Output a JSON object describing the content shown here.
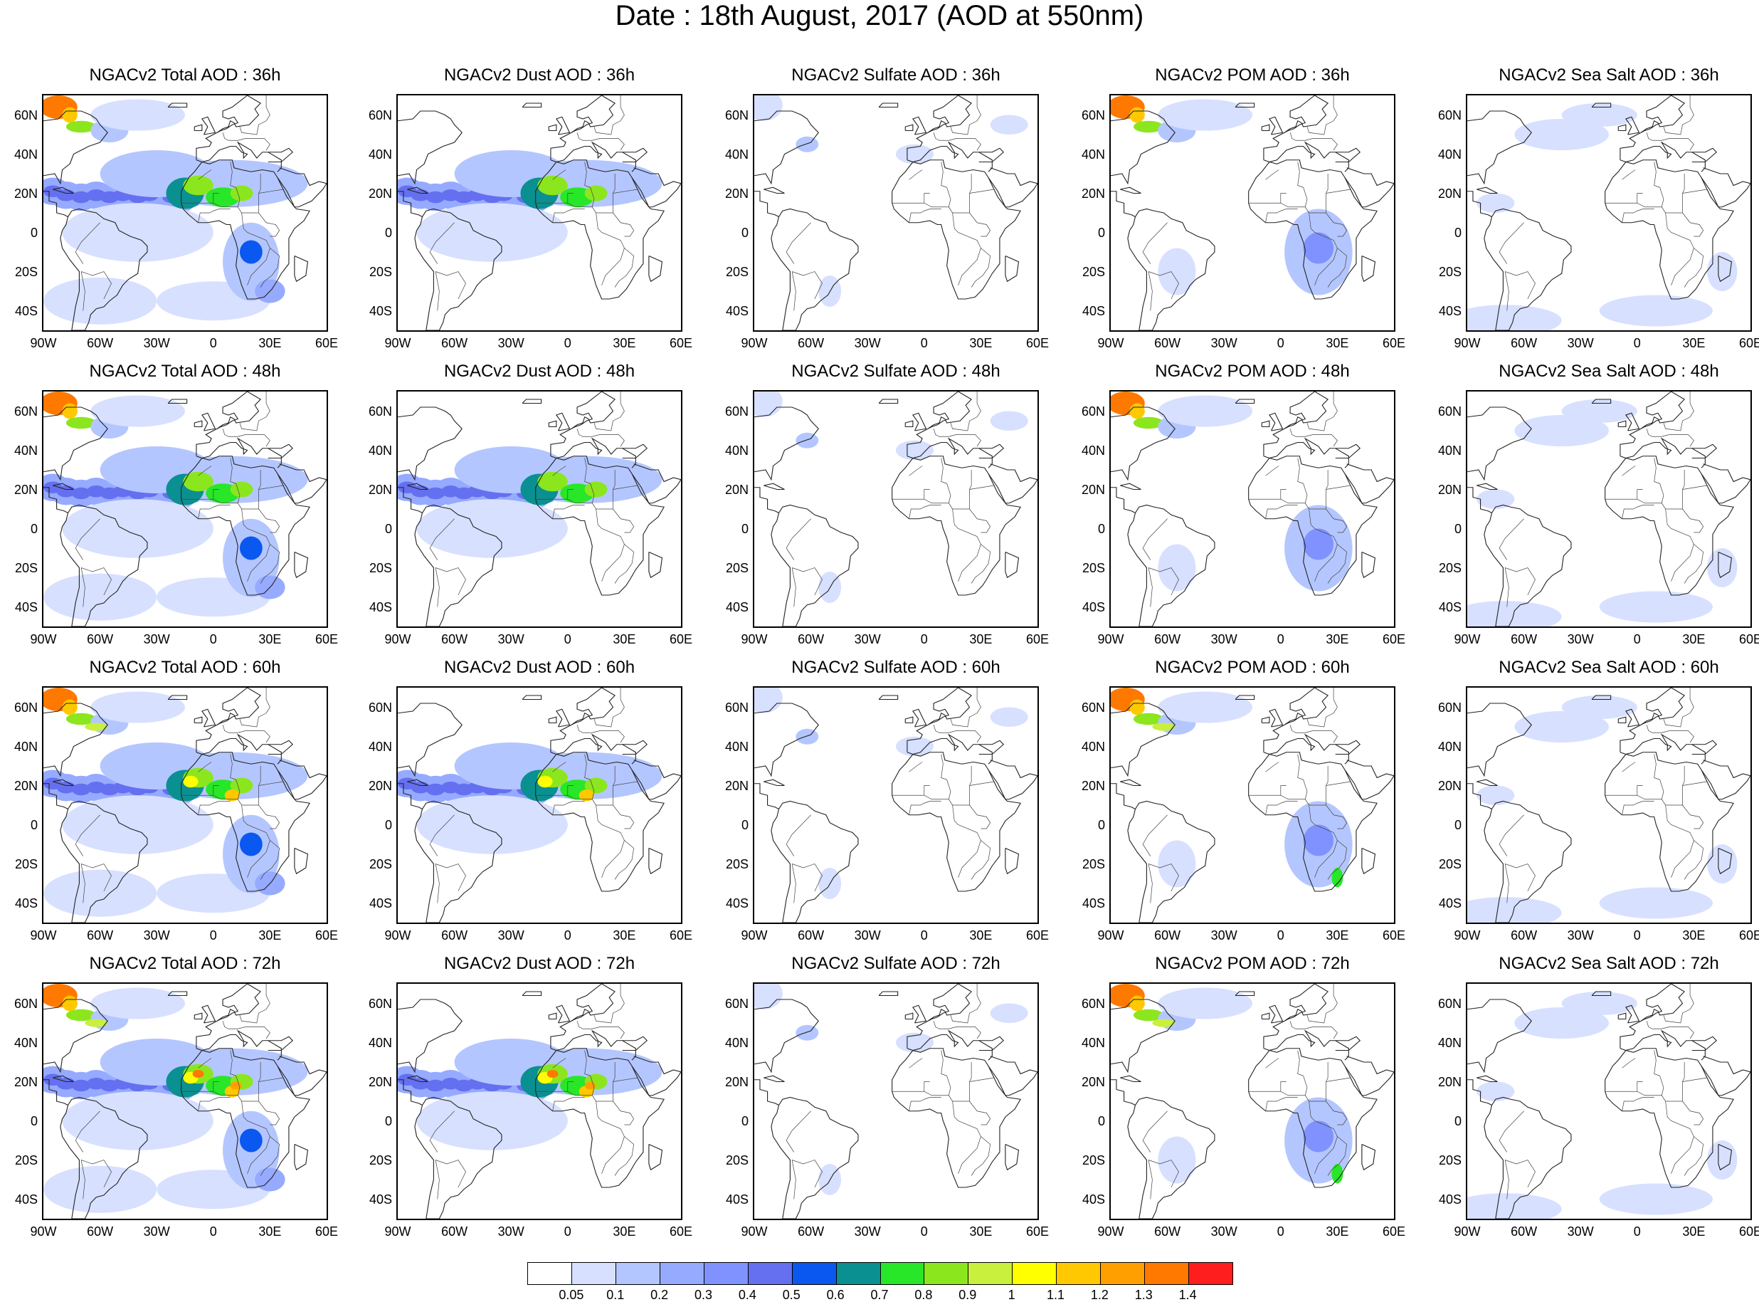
{
  "title": "Date : 18th August, 2017 (AOD at 550nm)",
  "lat_ticks": [
    "60N",
    "40N",
    "20N",
    "0",
    "20S",
    "40S"
  ],
  "lon_ticks": [
    "90W",
    "60W",
    "30W",
    "0",
    "30E",
    "60E"
  ],
  "panels": [
    [
      {
        "title": "NGACv2 Total AOD : 36h",
        "species": "total",
        "hour": 36
      },
      {
        "title": "NGACv2 Dust AOD : 36h",
        "species": "dust",
        "hour": 36
      },
      {
        "title": "NGACv2 Sulfate AOD : 36h",
        "species": "sulfate",
        "hour": 36
      },
      {
        "title": "NGACv2 POM AOD : 36h",
        "species": "pom",
        "hour": 36
      },
      {
        "title": "NGACv2 Sea Salt AOD : 36h",
        "species": "seasalt",
        "hour": 36
      }
    ],
    [
      {
        "title": "NGACv2 Total AOD : 48h",
        "species": "total",
        "hour": 48
      },
      {
        "title": "NGACv2 Dust AOD : 48h",
        "species": "dust",
        "hour": 48
      },
      {
        "title": "NGACv2 Sulfate AOD : 48h",
        "species": "sulfate",
        "hour": 48
      },
      {
        "title": "NGACv2 POM AOD : 48h",
        "species": "pom",
        "hour": 48
      },
      {
        "title": "NGACv2 Sea Salt AOD : 48h",
        "species": "seasalt",
        "hour": 48
      }
    ],
    [
      {
        "title": "NGACv2 Total AOD : 60h",
        "species": "total",
        "hour": 60
      },
      {
        "title": "NGACv2 Dust AOD : 60h",
        "species": "dust",
        "hour": 60
      },
      {
        "title": "NGACv2 Sulfate AOD : 60h",
        "species": "sulfate",
        "hour": 60
      },
      {
        "title": "NGACv2 POM AOD : 60h",
        "species": "pom",
        "hour": 60
      },
      {
        "title": "NGACv2 Sea Salt AOD : 60h",
        "species": "seasalt",
        "hour": 60
      }
    ],
    [
      {
        "title": "NGACv2 Total AOD : 72h",
        "species": "total",
        "hour": 72
      },
      {
        "title": "NGACv2 Dust AOD : 72h",
        "species": "dust",
        "hour": 72
      },
      {
        "title": "NGACv2 Sulfate AOD : 72h",
        "species": "sulfate",
        "hour": 72
      },
      {
        "title": "NGACv2 POM AOD : 72h",
        "species": "pom",
        "hour": 72
      },
      {
        "title": "NGACv2 Sea Salt  AOD : 72h",
        "species": "seasalt",
        "hour": 72
      }
    ]
  ],
  "colorbar": {
    "labels": [
      "0.05",
      "0.1",
      "0.2",
      "0.3",
      "0.4",
      "0.5",
      "0.6",
      "0.7",
      "0.8",
      "0.9",
      "1",
      "1.1",
      "1.2",
      "1.3",
      "1.4"
    ],
    "colors": [
      "#ffffff",
      "#d7e0ff",
      "#b4c6ff",
      "#96aaff",
      "#7f92ff",
      "#6470f0",
      "#0a58f0",
      "#0a9090",
      "#28e628",
      "#8ce61e",
      "#c8f03c",
      "#ffff00",
      "#ffc800",
      "#ffa000",
      "#ff7800",
      "#ff1e1e"
    ]
  },
  "map_extent": {
    "lon": [
      -90,
      60
    ],
    "lat": [
      -50,
      70
    ]
  }
}
